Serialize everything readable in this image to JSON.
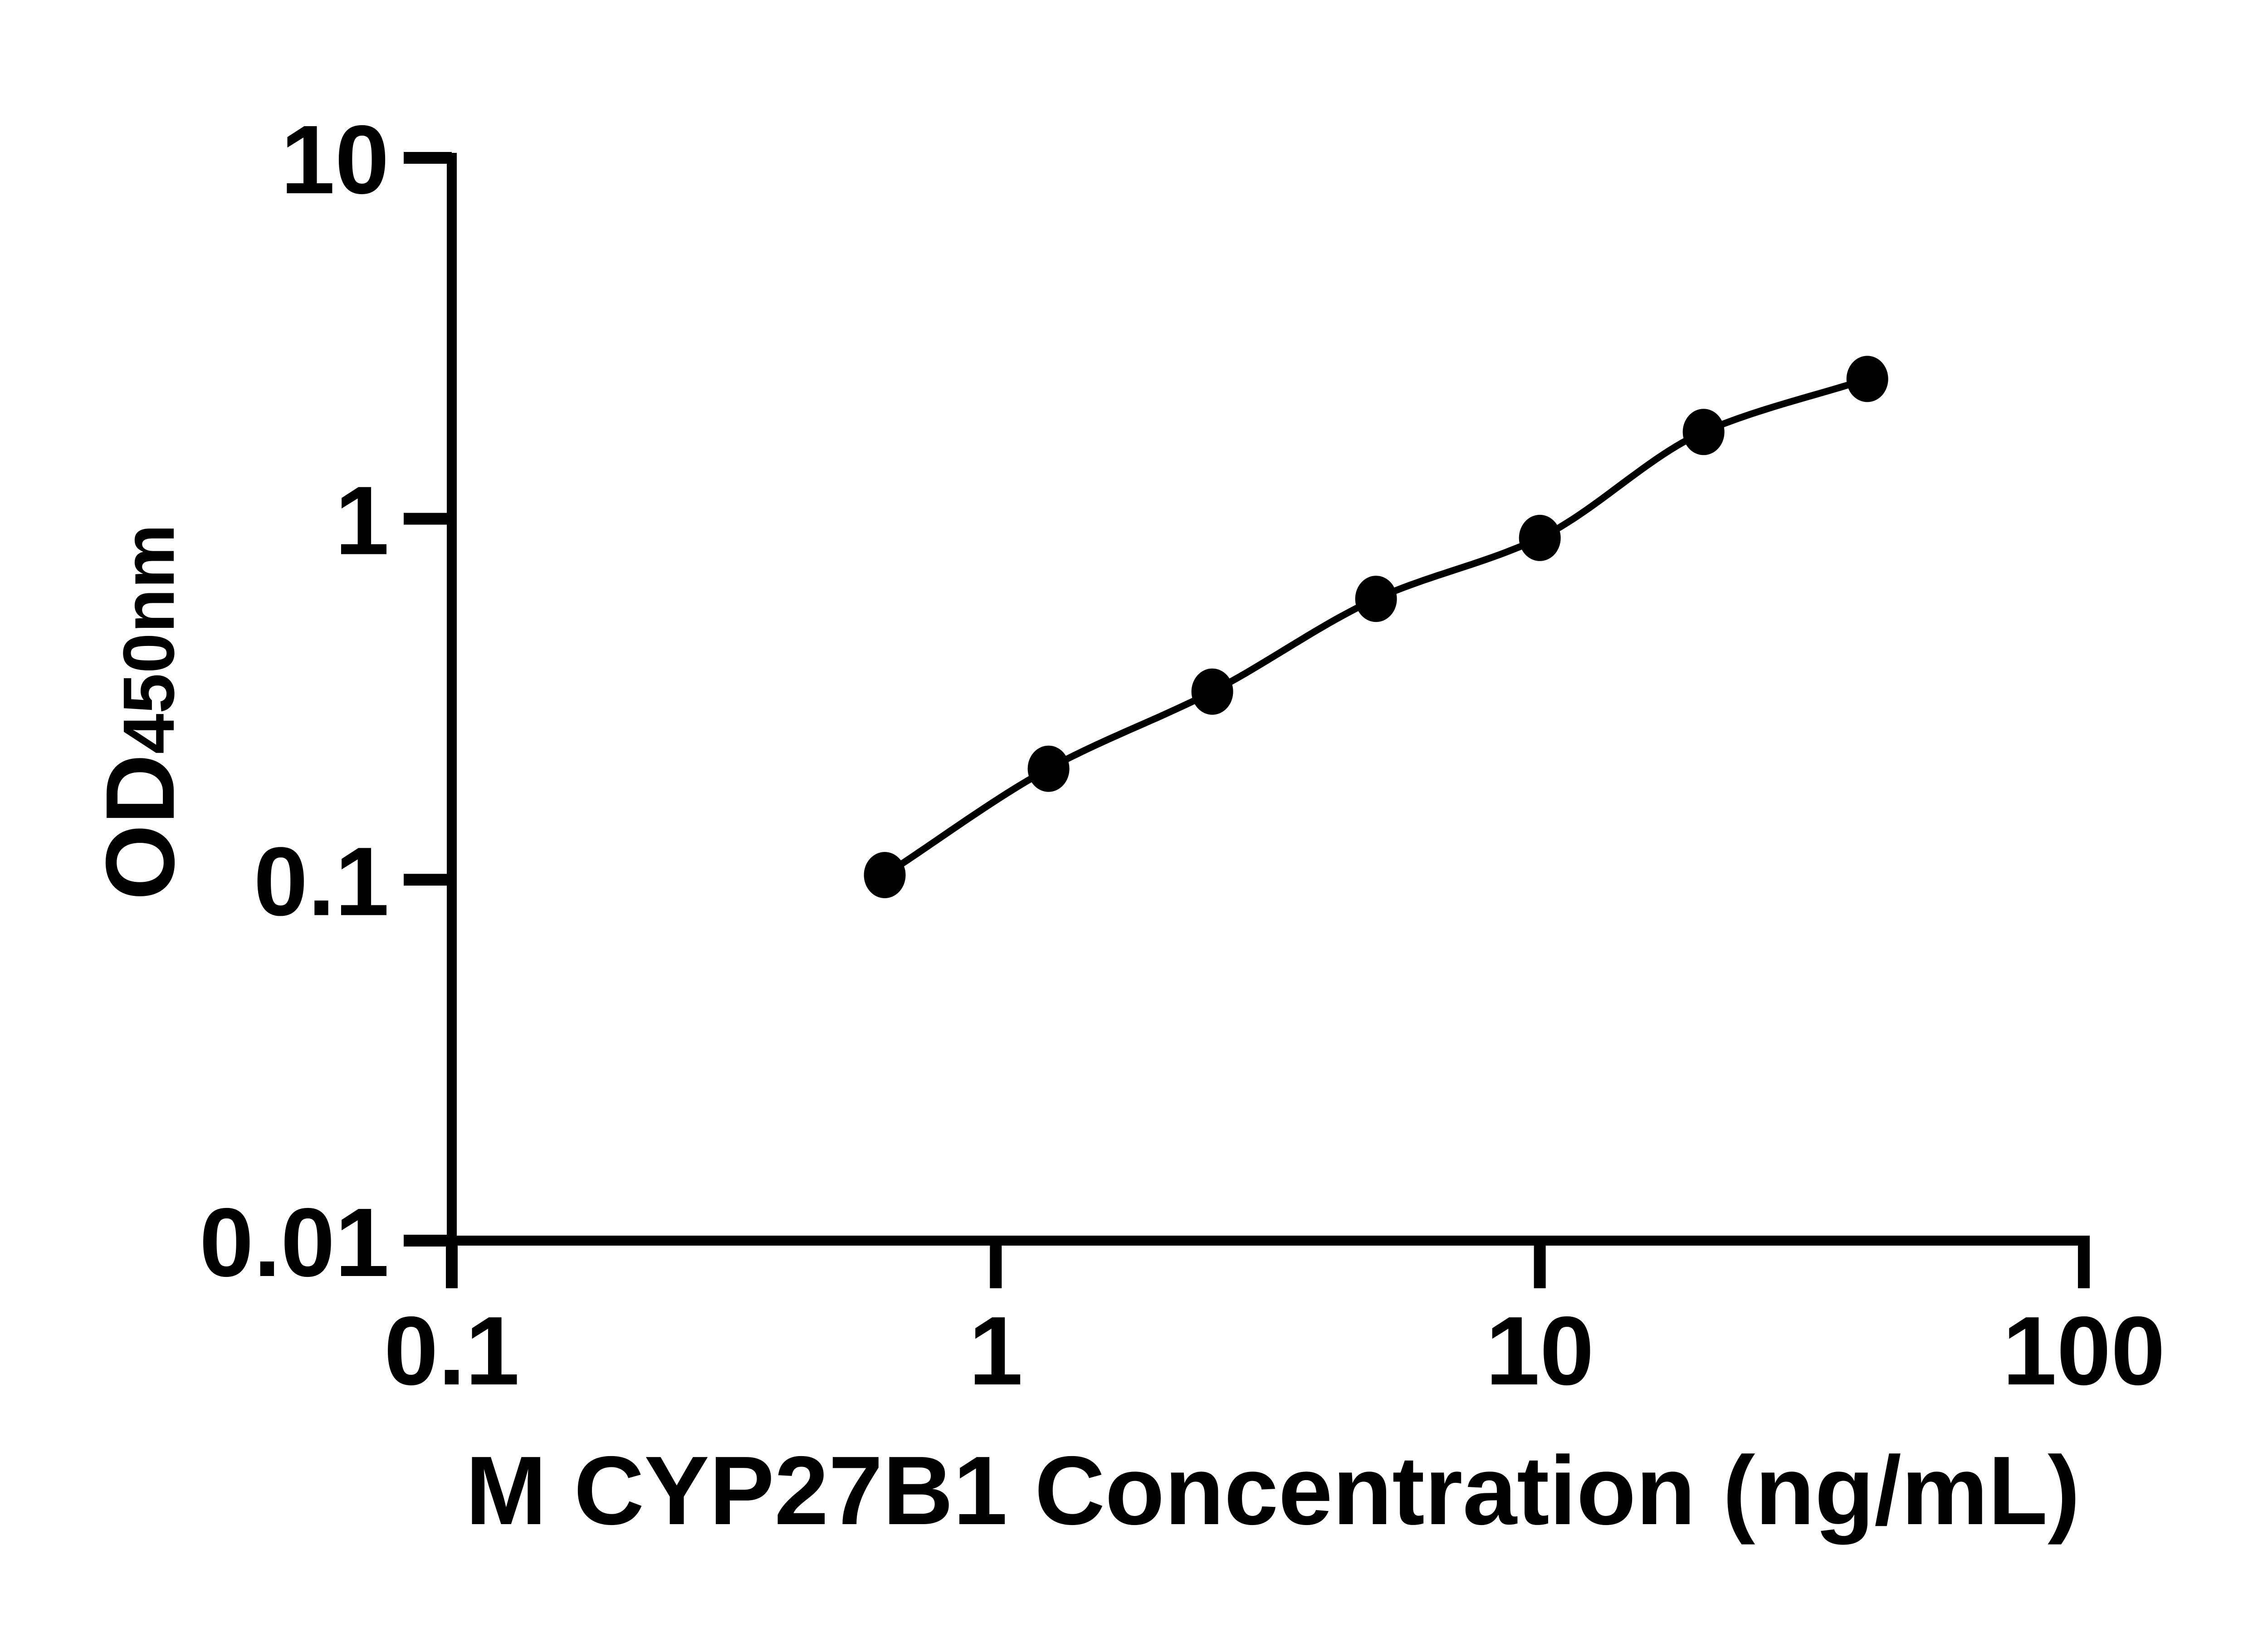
{
  "figure": {
    "background": "#ffffff",
    "ink_color": "#000000"
  },
  "chart_data": {
    "type": "scatter",
    "fit_curve": true,
    "title": "",
    "xlabel": "M CYP27B1 Concentration (ng/mL)",
    "ylabel_main": "OD",
    "ylabel_sub": "450nm",
    "x_scale": "log",
    "y_scale": "log",
    "xlim": [
      0.1,
      100
    ],
    "ylim": [
      0.01,
      10
    ],
    "x_ticks": [
      0.1,
      1,
      10,
      100
    ],
    "x_tick_labels": [
      "0.1",
      "1",
      "10",
      "100"
    ],
    "y_ticks": [
      10,
      1,
      0.1,
      0.01
    ],
    "y_tick_labels": [
      "10",
      "1",
      "0.1",
      "0.01"
    ],
    "grid": false,
    "legend": null,
    "marker": "filled-circle",
    "marker_color": "#000000",
    "line_color": "#000000",
    "x": [
      0.625,
      1.25,
      2.5,
      5,
      10,
      20,
      40
    ],
    "y": [
      0.103,
      0.203,
      0.332,
      0.6,
      0.885,
      1.74,
      2.44
    ]
  }
}
